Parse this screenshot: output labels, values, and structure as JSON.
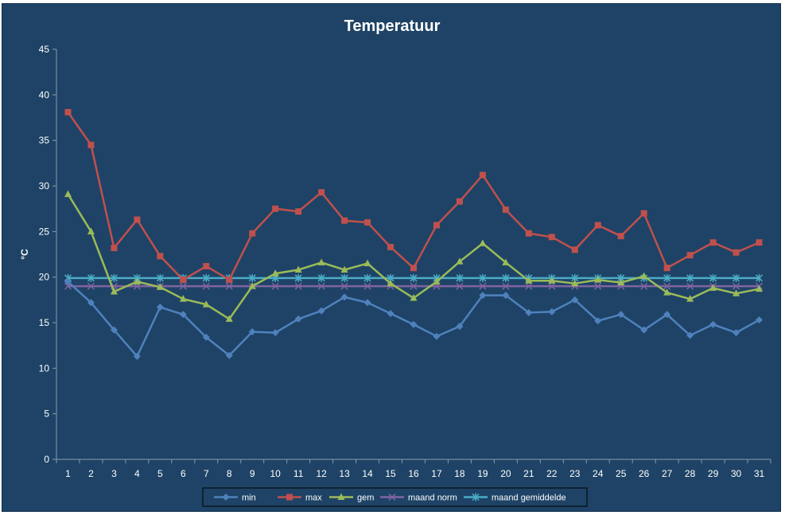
{
  "chart_data": {
    "type": "line",
    "title": "Temperatuur",
    "ylabel": "°C",
    "xlabel": "",
    "ylim": [
      0,
      45
    ],
    "yticks": [
      0,
      5,
      10,
      15,
      20,
      25,
      30,
      35,
      40,
      45
    ],
    "categories": [
      "1",
      "2",
      "3",
      "4",
      "5",
      "6",
      "7",
      "8",
      "9",
      "10",
      "11",
      "12",
      "13",
      "14",
      "15",
      "16",
      "17",
      "18",
      "19",
      "20",
      "21",
      "22",
      "23",
      "24",
      "25",
      "26",
      "27",
      "28",
      "29",
      "30",
      "31"
    ],
    "grid": false,
    "legend_position": "bottom",
    "series": [
      {
        "name": "min",
        "color": "#4f81bd",
        "marker": "diamond",
        "values": [
          19.5,
          17.2,
          14.2,
          11.3,
          16.7,
          15.9,
          13.4,
          11.4,
          14.0,
          13.9,
          15.4,
          16.3,
          17.8,
          17.2,
          16.0,
          14.8,
          13.5,
          14.6,
          18.0,
          18.0,
          16.1,
          16.2,
          17.5,
          15.2,
          15.9,
          14.2,
          15.9,
          13.6,
          14.8,
          13.9,
          15.3
        ]
      },
      {
        "name": "max",
        "color": "#c0504d",
        "marker": "square",
        "values": [
          38.1,
          34.5,
          23.2,
          26.3,
          22.3,
          19.7,
          21.2,
          19.7,
          24.8,
          27.5,
          27.2,
          29.3,
          26.2,
          26.0,
          23.3,
          21.0,
          25.7,
          28.3,
          31.2,
          27.4,
          24.8,
          24.4,
          23.0,
          25.7,
          24.5,
          27.0,
          21.0,
          22.4,
          23.8,
          22.7,
          23.8
        ]
      },
      {
        "name": "gem",
        "color": "#9bbb59",
        "marker": "triangle",
        "values": [
          29.1,
          25.0,
          18.4,
          19.5,
          18.9,
          17.6,
          17.0,
          15.4,
          19.0,
          20.4,
          20.8,
          21.6,
          20.8,
          21.5,
          19.3,
          17.7,
          19.5,
          21.7,
          23.7,
          21.6,
          19.6,
          19.6,
          19.3,
          19.7,
          19.4,
          20.1,
          18.3,
          17.6,
          18.8,
          18.2,
          18.7
        ]
      },
      {
        "name": "maand norm",
        "color": "#8064a2",
        "marker": "x",
        "values": [
          19,
          19,
          19,
          19,
          19,
          19,
          19,
          19,
          19,
          19,
          19,
          19,
          19,
          19,
          19,
          19,
          19,
          19,
          19,
          19,
          19,
          19,
          19,
          19,
          19,
          19,
          19,
          19,
          19,
          19,
          19
        ]
      },
      {
        "name": "maand gemiddelde",
        "color": "#4bacc6",
        "marker": "star",
        "values": [
          19.9,
          19.9,
          19.9,
          19.9,
          19.9,
          19.9,
          19.9,
          19.9,
          19.9,
          19.9,
          19.9,
          19.9,
          19.9,
          19.9,
          19.9,
          19.9,
          19.9,
          19.9,
          19.9,
          19.9,
          19.9,
          19.9,
          19.9,
          19.9,
          19.9,
          19.9,
          19.9,
          19.9,
          19.9,
          19.9,
          19.9
        ]
      }
    ]
  }
}
